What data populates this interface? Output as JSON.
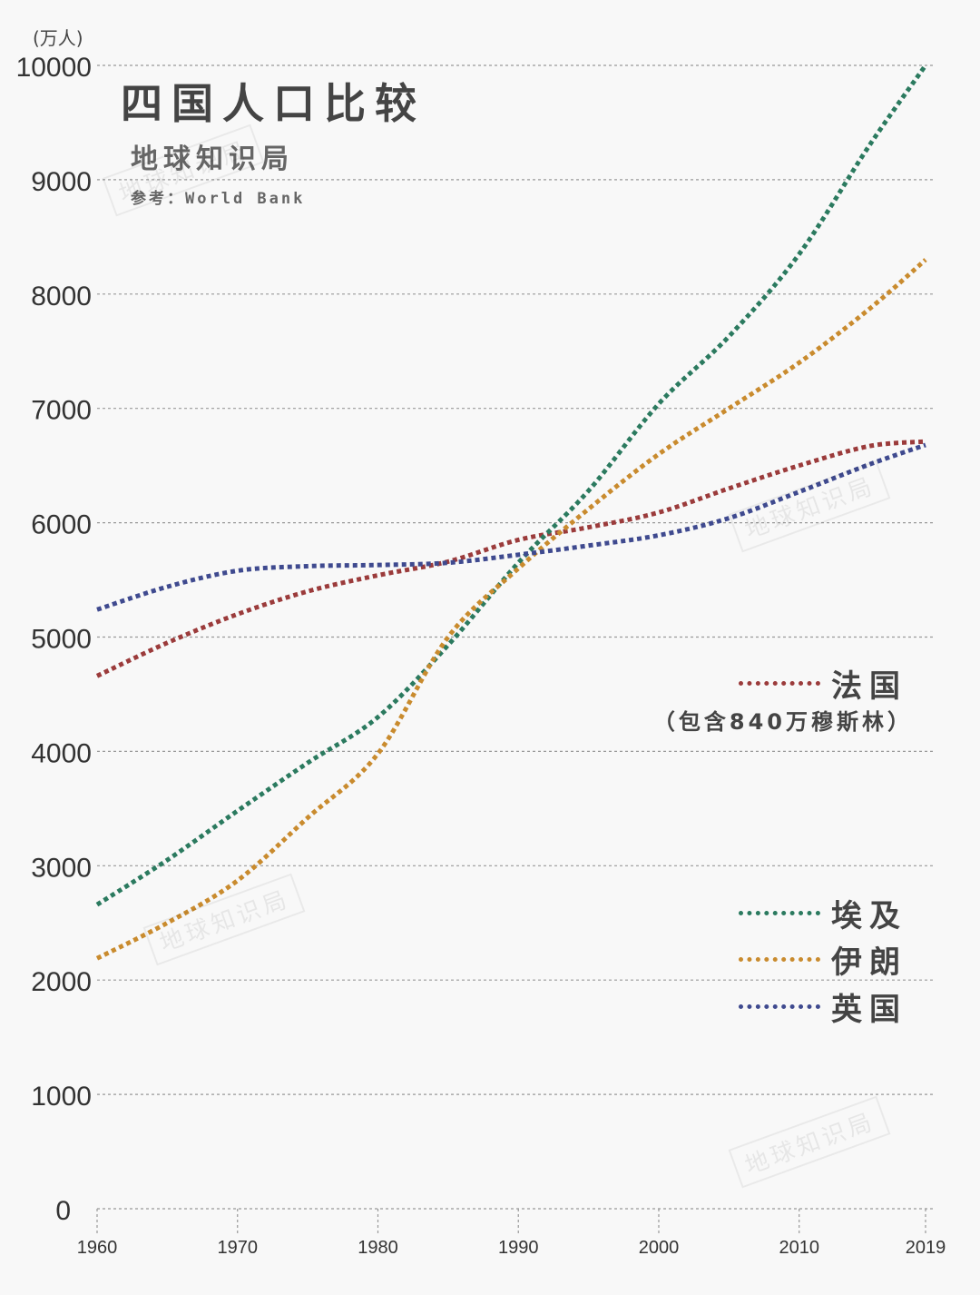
{
  "chart_data": {
    "type": "line",
    "title": "四国人口比较",
    "subtitle": "地球知识局",
    "source": "参考：World Bank",
    "ylabel": "(万人)",
    "xlabel": "",
    "xlim": [
      1960,
      2019
    ],
    "ylim": [
      0,
      10000
    ],
    "x_ticks": [
      1960,
      1970,
      1980,
      1990,
      2000,
      2010,
      2019
    ],
    "y_ticks": [
      0,
      1000,
      2000,
      3000,
      4000,
      5000,
      6000,
      7000,
      8000,
      9000,
      10000
    ],
    "grid": "horizontal dotted",
    "legend_placement": "right",
    "x": [
      1960,
      1965,
      1970,
      1975,
      1980,
      1985,
      1990,
      1995,
      2000,
      2005,
      2010,
      2015,
      2019
    ],
    "series": [
      {
        "name": "法国",
        "note": "（包含840万穆斯林）",
        "color": "#9b3b3b",
        "values": [
          4660,
          4950,
          5200,
          5400,
          5540,
          5660,
          5850,
          5960,
          6090,
          6300,
          6500,
          6670,
          6710
        ]
      },
      {
        "name": "埃及",
        "color": "#2b7a5f",
        "values": [
          2660,
          3050,
          3480,
          3900,
          4300,
          4930,
          5650,
          6280,
          7040,
          7630,
          8350,
          9300,
          10000
        ]
      },
      {
        "name": "伊朗",
        "color": "#c98b2e",
        "values": [
          2190,
          2500,
          2870,
          3420,
          3980,
          5000,
          5600,
          6120,
          6600,
          7000,
          7400,
          7870,
          8300
        ]
      },
      {
        "name": "英国",
        "color": "#3f4a8f",
        "values": [
          5240,
          5440,
          5580,
          5620,
          5630,
          5650,
          5720,
          5800,
          5890,
          6040,
          6270,
          6510,
          6680
        ]
      }
    ]
  },
  "watermark": "地球知识局"
}
